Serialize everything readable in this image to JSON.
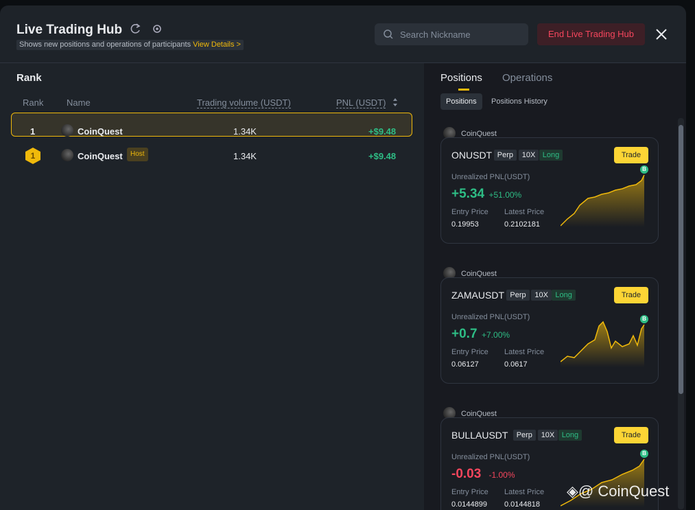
{
  "header": {
    "title": "Live Trading Hub",
    "subtitle": "Shows new positions and operations of participants",
    "link": "View Details >",
    "search_placeholder": "Search Nickname",
    "end_button": "End Live Trading Hub"
  },
  "rank": {
    "title": "Rank",
    "columns": [
      "Rank",
      "Name",
      "Trading volume (USDT)",
      "PNL (USDT)"
    ],
    "rows": [
      {
        "rank": "1",
        "name": "CoinQuest",
        "volume": "1.34K",
        "pnl": "+$9.48"
      },
      {
        "rank": "1",
        "name": "CoinQuest",
        "badge": "Host",
        "volume": "1.34K",
        "pnl": "+$9.48"
      }
    ]
  },
  "tabs": [
    "Positions",
    "Operations"
  ],
  "subtabs": [
    "Positions",
    "Positions History"
  ],
  "positions": [
    {
      "user": "CoinQuest",
      "symbol": "ONUSDT",
      "type": "Perp",
      "leverage": "10X",
      "side": "Long",
      "trade": "Trade",
      "pnl_label": "Unrealized PNL(USDT)",
      "pnl": "+5.34",
      "pnl_pct": "+51.00%",
      "entry_label": "Entry Price",
      "entry": "0.19953",
      "latest_label": "Latest Price",
      "latest": "0.2102181",
      "marker": "B"
    },
    {
      "user": "CoinQuest",
      "symbol": "ZAMAUSDT",
      "type": "Perp",
      "leverage": "10X",
      "side": "Long",
      "trade": "Trade",
      "pnl_label": "Unrealized PNL(USDT)",
      "pnl": "+0.7",
      "pnl_pct": "+7.00%",
      "entry_label": "Entry Price",
      "entry": "0.06127",
      "latest_label": "Latest Price",
      "latest": "0.0617",
      "marker": "B"
    },
    {
      "user": "CoinQuest",
      "symbol": "BULLAUSDT",
      "type": "Perp",
      "leverage": "10X",
      "side": "Long",
      "trade": "Trade",
      "pnl_label": "Unrealized PNL(USDT)",
      "pnl": "-0.03",
      "pnl_pct": "-1.00%",
      "entry_label": "Entry Price",
      "entry": "0.0144899",
      "latest_label": "Latest Price",
      "latest": "0.0144818",
      "marker": "B"
    }
  ],
  "watermark": "@ CoinQuest"
}
